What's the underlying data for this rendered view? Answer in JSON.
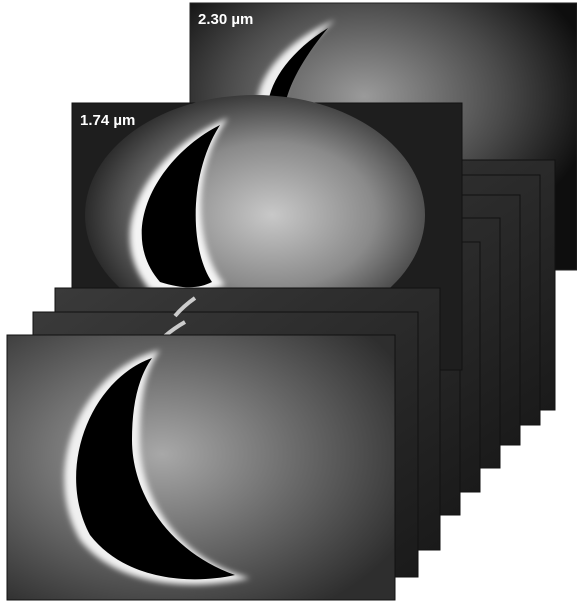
{
  "images": [
    {
      "label": "2.30 µm"
    },
    {
      "label": "1.74 µm"
    }
  ]
}
